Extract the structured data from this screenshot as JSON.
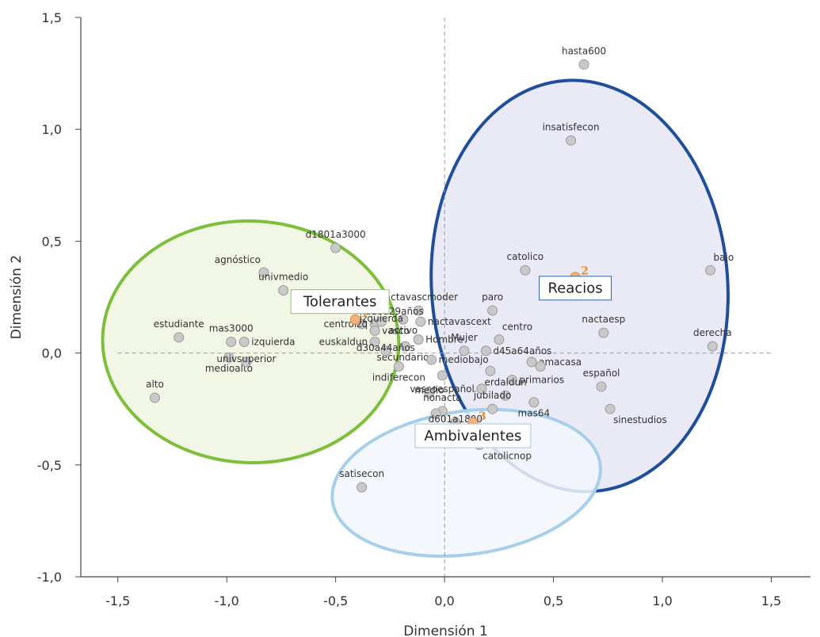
{
  "chart_data": {
    "type": "scatter",
    "xlabel": "Dimensión 1",
    "ylabel": "Dimensión 2",
    "xlim": [
      -1.5,
      1.5
    ],
    "ylim": [
      -1.0,
      1.5
    ],
    "xticks": [
      {
        "v": -1.5,
        "label": "-1,5"
      },
      {
        "v": -1.0,
        "label": "-1,0"
      },
      {
        "v": -0.5,
        "label": "-0,5"
      },
      {
        "v": 0.0,
        "label": "0,0"
      },
      {
        "v": 0.5,
        "label": "0,5"
      },
      {
        "v": 1.0,
        "label": "1,0"
      },
      {
        "v": 1.5,
        "label": "1,5"
      }
    ],
    "yticks": [
      {
        "v": -1.0,
        "label": "-1,0"
      },
      {
        "v": -0.5,
        "label": "-0,5"
      },
      {
        "v": 0.0,
        "label": "0,0"
      },
      {
        "v": 0.5,
        "label": "0,5"
      },
      {
        "v": 1.0,
        "label": "1,0"
      },
      {
        "v": 1.5,
        "label": "1,5"
      }
    ],
    "points": [
      {
        "label": "hasta600",
        "x": 0.64,
        "y": 1.29,
        "la": "above"
      },
      {
        "label": "insatisfecon",
        "x": 0.58,
        "y": 0.95,
        "la": "above"
      },
      {
        "label": "d1801a3000",
        "x": -0.5,
        "y": 0.47,
        "la": "above"
      },
      {
        "label": "catolico",
        "x": 0.37,
        "y": 0.37,
        "la": "above"
      },
      {
        "label": "bajo",
        "x": 1.22,
        "y": 0.37,
        "la": "aboveright"
      },
      {
        "label": "agnóstico",
        "x": -0.83,
        "y": 0.36,
        "la": "aboveleft"
      },
      {
        "label": "univmedio",
        "x": -0.74,
        "y": 0.28,
        "la": "above"
      },
      {
        "label": "nactavascmoder",
        "x": -0.12,
        "y": 0.19,
        "la": "above"
      },
      {
        "label": "paro",
        "x": 0.22,
        "y": 0.19,
        "la": "above"
      },
      {
        "label": "d18a29años",
        "x": -0.38,
        "y": 0.13,
        "la": "aboveright"
      },
      {
        "label": "centroizq",
        "x": -0.32,
        "y": 0.13,
        "la": "left"
      },
      {
        "label": "nactavascext",
        "x": -0.11,
        "y": 0.14,
        "la": "right"
      },
      {
        "label": "activo",
        "x": -0.19,
        "y": 0.15,
        "la": "below"
      },
      {
        "label": "vasco",
        "x": -0.32,
        "y": 0.1,
        "la": "right"
      },
      {
        "label": "izquierda",
        "x": -0.29,
        "y": 0.14,
        "la": "none"
      },
      {
        "label": "centro",
        "x": 0.25,
        "y": 0.06,
        "la": "aboveright"
      },
      {
        "label": "nactaesp",
        "x": 0.73,
        "y": 0.09,
        "la": "above"
      },
      {
        "label": "derecha",
        "x": 1.23,
        "y": 0.03,
        "la": "above"
      },
      {
        "label": "estudiante",
        "x": -1.22,
        "y": 0.07,
        "la": "above"
      },
      {
        "label": "mas3000",
        "x": -0.98,
        "y": 0.05,
        "la": "above"
      },
      {
        "label": "izquierda",
        "x": -0.92,
        "y": 0.05,
        "la": "right"
      },
      {
        "label": "euskaldun",
        "x": -0.32,
        "y": 0.05,
        "la": "left"
      },
      {
        "label": "Hombre",
        "x": -0.12,
        "y": 0.06,
        "la": "right"
      },
      {
        "label": "Mujer",
        "x": 0.09,
        "y": 0.01,
        "la": "above"
      },
      {
        "label": "d45a64años",
        "x": 0.19,
        "y": 0.01,
        "la": "right"
      },
      {
        "label": "secundarios",
        "x": -0.18,
        "y": 0.03,
        "la": "below"
      },
      {
        "label": "d30a44años",
        "x": -0.27,
        "y": 0.01,
        "la": "none"
      },
      {
        "label": "medioalto",
        "x": -0.99,
        "y": -0.02,
        "la": "below"
      },
      {
        "label": "univsuperior",
        "x": -0.91,
        "y": -0.04,
        "la": "none"
      },
      {
        "label": "mediobajo",
        "x": -0.06,
        "y": -0.03,
        "la": "right"
      },
      {
        "label": "indiferecon",
        "x": -0.21,
        "y": -0.06,
        "la": "below"
      },
      {
        "label": "amacasa",
        "x": 0.4,
        "y": -0.04,
        "la": "right"
      },
      {
        "label": "",
        "x": 0.44,
        "y": -0.06,
        "la": "none"
      },
      {
        "label": "",
        "x": 0.21,
        "y": -0.08,
        "la": "none"
      },
      {
        "label": "",
        "x": -0.01,
        "y": -0.1,
        "la": "none"
      },
      {
        "label": "primarios",
        "x": 0.31,
        "y": -0.12,
        "la": "right"
      },
      {
        "label": "español",
        "x": 0.72,
        "y": -0.15,
        "la": "above"
      },
      {
        "label": "vascoespañol",
        "x": 0.17,
        "y": -0.16,
        "la": "left"
      },
      {
        "label": "medio",
        "x": -0.07,
        "y": -0.18,
        "la": "none"
      },
      {
        "label": "erdaldun",
        "x": 0.28,
        "y": -0.19,
        "la": "above"
      },
      {
        "label": "alto",
        "x": -1.33,
        "y": -0.2,
        "la": "above"
      },
      {
        "label": "mas64",
        "x": 0.41,
        "y": -0.22,
        "la": "below"
      },
      {
        "label": "jubilado",
        "x": 0.22,
        "y": -0.25,
        "la": "above"
      },
      {
        "label": "sinestudios",
        "x": 0.76,
        "y": -0.25,
        "la": "belowright"
      },
      {
        "label": "nonacta",
        "x": -0.01,
        "y": -0.26,
        "la": "above"
      },
      {
        "label": "",
        "x": -0.04,
        "y": -0.27,
        "la": "none"
      },
      {
        "label": "d601a1800",
        "x": 0.05,
        "y": -0.31,
        "la": "none"
      },
      {
        "label": "catolicnop",
        "x": 0.16,
        "y": -0.41,
        "la": "belowright"
      },
      {
        "label": "satisecon",
        "x": -0.38,
        "y": -0.6,
        "la": "above"
      }
    ],
    "centroids": [
      {
        "num": "1",
        "x": -0.41,
        "y": 0.15
      },
      {
        "num": "2",
        "x": 0.6,
        "y": 0.34
      },
      {
        "num": "3",
        "x": 0.13,
        "y": -0.31
      }
    ],
    "groups": [
      {
        "name": "Tolerantes",
        "color": "#7dbe3a",
        "fill": "#eef5e1",
        "cx": -0.89,
        "cy": 0.05,
        "rx": 0.68,
        "ry": 0.54,
        "lx": -0.48,
        "ly": 0.23,
        "border": "#8cc866"
      },
      {
        "name": "Reacios",
        "color": "#1f4e9c",
        "fill": "#e5e6f5",
        "cx": 0.62,
        "cy": 0.3,
        "rx": 0.68,
        "ry": 0.92,
        "lx": 0.6,
        "ly": 0.29,
        "border": "#2f64ad"
      },
      {
        "name": "Ambivalentes",
        "color": "#a7cfe9",
        "fill": "#f2f6fb",
        "cx": 0.1,
        "cy": -0.58,
        "rx": 0.62,
        "ry": 0.32,
        "lx": 0.13,
        "ly": -0.37,
        "border": "#9ec8e6"
      }
    ],
    "colors": {
      "point": "#c9c9c9",
      "point_stroke": "#9a9a9a",
      "centroid": "#f5b27a",
      "axis": "#444444",
      "zero_line": "#999999"
    }
  }
}
